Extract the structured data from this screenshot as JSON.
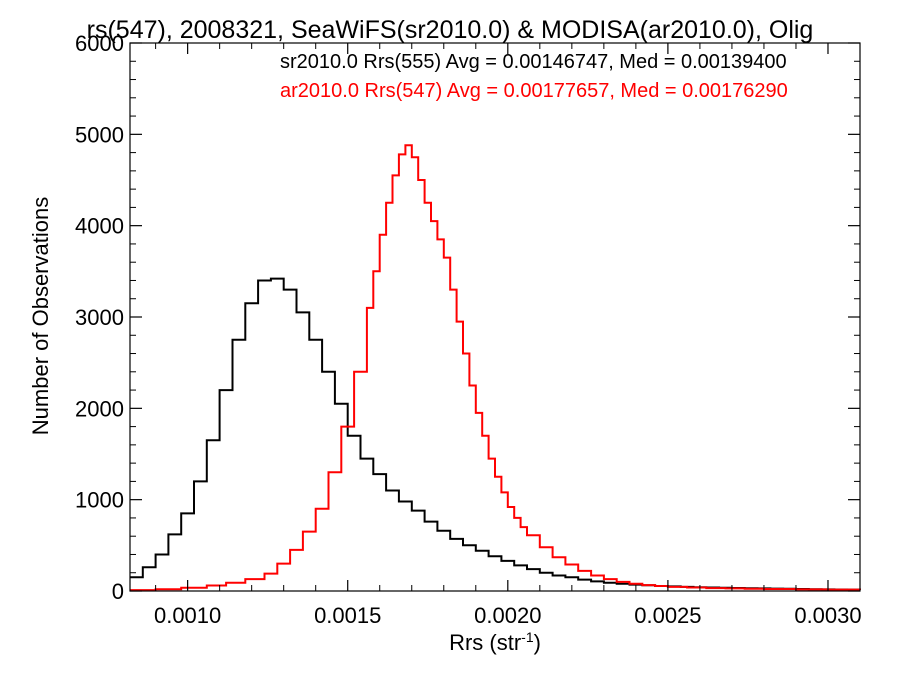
{
  "chart_data": {
    "type": "histogram",
    "title": "rs(547), 2008321, SeaWiFS(sr2010.0) & MODISA(ar2010.0), Olig",
    "xlabel_main": "Rrs (str",
    "xlabel_sup": "-1",
    "xlabel_close": ")",
    "ylabel": "Number of Observations",
    "xlim": [
      0.00082,
      0.0031
    ],
    "ylim": [
      0,
      6000
    ],
    "xticks": [
      0.001,
      0.0015,
      0.002,
      0.0025,
      0.003
    ],
    "xtick_labels": [
      "0.0010",
      "0.0015",
      "0.0020",
      "0.0025",
      "0.0030"
    ],
    "yticks": [
      0,
      1000,
      2000,
      3000,
      4000,
      5000,
      6000
    ],
    "ytick_labels": [
      "0",
      "1000",
      "2000",
      "3000",
      "4000",
      "5000",
      "6000"
    ],
    "grid": false,
    "legend_placement": "top-right",
    "series": [
      {
        "name": "sr2010.0 Rrs(555) Avg = 0.00146747, Med = 0.00139400",
        "color": "#000000",
        "x": [
          0.00082,
          0.00086,
          0.0009,
          0.00094,
          0.00098,
          0.00102,
          0.00106,
          0.0011,
          0.00114,
          0.00118,
          0.00122,
          0.00126,
          0.0013,
          0.00134,
          0.00138,
          0.00142,
          0.00146,
          0.0015,
          0.00154,
          0.00158,
          0.00162,
          0.00166,
          0.0017,
          0.00174,
          0.00178,
          0.00182,
          0.00186,
          0.0019,
          0.00194,
          0.00198,
          0.00202,
          0.00206,
          0.0021,
          0.00214,
          0.00218,
          0.00222,
          0.00226,
          0.0023,
          0.00234,
          0.00238,
          0.00242,
          0.00246,
          0.0025,
          0.00254,
          0.00258,
          0.00262,
          0.00266,
          0.0027,
          0.00274,
          0.00278,
          0.00282,
          0.00286,
          0.0029,
          0.00294,
          0.00298,
          0.00302,
          0.00306,
          0.0031
        ],
        "values": [
          150,
          260,
          400,
          620,
          850,
          1200,
          1650,
          2200,
          2750,
          3150,
          3400,
          3420,
          3300,
          3050,
          2750,
          2400,
          2050,
          1700,
          1450,
          1280,
          1100,
          980,
          880,
          760,
          660,
          570,
          500,
          440,
          380,
          330,
          280,
          240,
          200,
          170,
          150,
          125,
          105,
          90,
          80,
          70,
          62,
          55,
          50,
          45,
          42,
          38,
          35,
          33,
          30,
          28,
          26,
          24,
          22,
          20,
          18,
          16,
          15,
          14
        ]
      },
      {
        "name": "ar2010.0 Rrs(547) Avg = 0.00177657, Med = 0.00176290",
        "color": "#ff0000",
        "x": [
          0.00082,
          0.0009,
          0.00098,
          0.00106,
          0.00112,
          0.00118,
          0.00124,
          0.00128,
          0.00132,
          0.00136,
          0.0014,
          0.00144,
          0.00148,
          0.00152,
          0.00156,
          0.00158,
          0.0016,
          0.00162,
          0.00164,
          0.00166,
          0.00168,
          0.0017,
          0.00172,
          0.00174,
          0.00176,
          0.00178,
          0.0018,
          0.00182,
          0.00184,
          0.00186,
          0.00188,
          0.0019,
          0.00192,
          0.00194,
          0.00196,
          0.00198,
          0.002,
          0.00202,
          0.00204,
          0.00206,
          0.0021,
          0.00214,
          0.00218,
          0.00222,
          0.00226,
          0.0023,
          0.00234,
          0.00238,
          0.00242,
          0.00246,
          0.0025,
          0.00256,
          0.00262,
          0.00268,
          0.00274,
          0.0028,
          0.0029,
          0.003,
          0.0031
        ],
        "values": [
          10,
          20,
          35,
          60,
          90,
          130,
          190,
          300,
          450,
          650,
          900,
          1300,
          1800,
          2400,
          3100,
          3500,
          3900,
          4250,
          4550,
          4780,
          4880,
          4750,
          4500,
          4250,
          4050,
          3850,
          3650,
          3300,
          2950,
          2600,
          2250,
          1950,
          1700,
          1450,
          1250,
          1080,
          920,
          800,
          700,
          610,
          480,
          370,
          290,
          220,
          170,
          130,
          100,
          80,
          65,
          55,
          45,
          38,
          32,
          28,
          25,
          22,
          18,
          15,
          12
        ]
      }
    ]
  }
}
